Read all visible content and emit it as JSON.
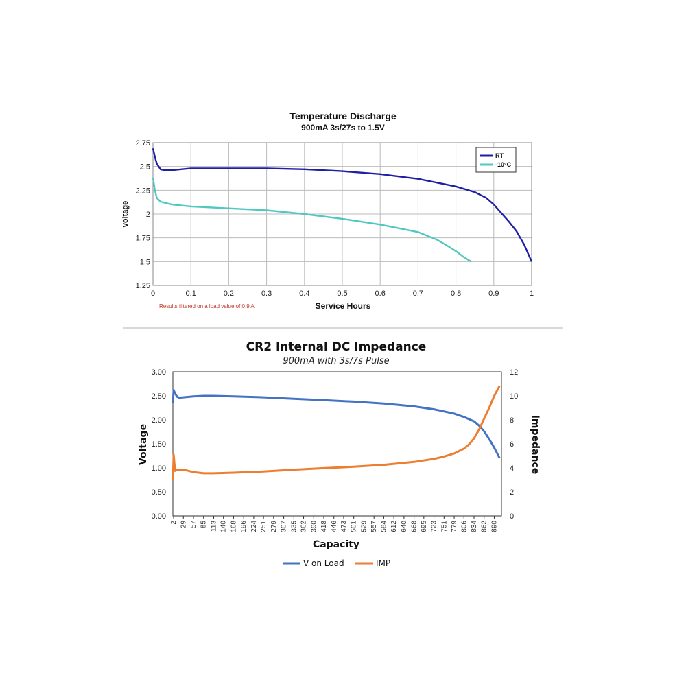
{
  "chart_data": [
    {
      "type": "line",
      "title": "Temperature Discharge",
      "subtitle": "900mA 3s/27s to 1.5V",
      "xlabel": "Service Hours",
      "ylabel": "voltage",
      "xlim": [
        0,
        1
      ],
      "ylim": [
        1.25,
        2.75
      ],
      "x_ticks": [
        "0",
        "0.1",
        "0.2",
        "0.3",
        "0.4",
        "0.5",
        "0.6",
        "0.7",
        "0.8",
        "0.9",
        "1"
      ],
      "y_ticks": [
        "2.75",
        "2.5",
        "2.25",
        "2",
        "1.75",
        "1.5",
        "1.25"
      ],
      "grid": true,
      "legend": "top-right",
      "annotation": "Results filtered on a load value of 0.9 A",
      "series": [
        {
          "name": "RT",
          "color": "#1f1fa6",
          "x": [
            0,
            0.005,
            0.01,
            0.02,
            0.03,
            0.05,
            0.1,
            0.2,
            0.3,
            0.4,
            0.5,
            0.6,
            0.7,
            0.8,
            0.85,
            0.88,
            0.9,
            0.92,
            0.94,
            0.96,
            0.98,
            1.0
          ],
          "y": [
            2.69,
            2.6,
            2.53,
            2.47,
            2.46,
            2.46,
            2.48,
            2.48,
            2.48,
            2.47,
            2.45,
            2.42,
            2.37,
            2.29,
            2.23,
            2.17,
            2.1,
            2.01,
            1.92,
            1.82,
            1.68,
            1.5
          ]
        },
        {
          "name": "-10°C",
          "color": "#4fc8c0",
          "x": [
            0,
            0.005,
            0.01,
            0.02,
            0.03,
            0.05,
            0.1,
            0.2,
            0.3,
            0.4,
            0.5,
            0.6,
            0.7,
            0.75,
            0.78,
            0.8,
            0.82,
            0.84
          ],
          "y": [
            2.38,
            2.25,
            2.17,
            2.13,
            2.12,
            2.1,
            2.08,
            2.06,
            2.04,
            2.0,
            1.95,
            1.89,
            1.81,
            1.73,
            1.66,
            1.61,
            1.55,
            1.5
          ]
        }
      ]
    },
    {
      "type": "line",
      "title": "CR2 Internal DC Impedance",
      "subtitle": "900mA with 3s/7s Pulse",
      "xlabel": "Capacity",
      "ylabel": "Voltage",
      "y2label": "Impedance",
      "categories": [
        "2",
        "29",
        "57",
        "85",
        "113",
        "140",
        "168",
        "196",
        "224",
        "251",
        "279",
        "307",
        "335",
        "362",
        "390",
        "418",
        "446",
        "473",
        "501",
        "529",
        "557",
        "584",
        "612",
        "640",
        "668",
        "695",
        "723",
        "751",
        "779",
        "806",
        "834",
        "862",
        "890"
      ],
      "xlim": [
        0,
        910
      ],
      "ylim": [
        0,
        3
      ],
      "y2lim": [
        0,
        12
      ],
      "y_ticks": [
        "0.00",
        "0.50",
        "1.00",
        "1.50",
        "2.00",
        "2.50",
        "3.00"
      ],
      "y2_ticks": [
        "0",
        "2",
        "4",
        "6",
        "8",
        "10",
        "12"
      ],
      "grid": false,
      "legend": "bottom",
      "series": [
        {
          "name": "V on Load",
          "color": "#4472c4",
          "axis": "left",
          "x": [
            0,
            2,
            6,
            12,
            18,
            29,
            57,
            85,
            113,
            168,
            251,
            335,
            418,
            501,
            584,
            668,
            723,
            779,
            806,
            834,
            848,
            862,
            876,
            890,
            905
          ],
          "y": [
            2.35,
            2.62,
            2.55,
            2.48,
            2.46,
            2.47,
            2.49,
            2.5,
            2.5,
            2.49,
            2.47,
            2.44,
            2.41,
            2.38,
            2.34,
            2.28,
            2.22,
            2.13,
            2.06,
            1.97,
            1.88,
            1.76,
            1.6,
            1.42,
            1.2
          ]
        },
        {
          "name": "IMP",
          "color": "#ed7d31",
          "axis": "right",
          "x": [
            0,
            2,
            6,
            12,
            29,
            57,
            85,
            113,
            168,
            251,
            335,
            418,
            501,
            584,
            668,
            723,
            751,
            779,
            806,
            820,
            834,
            848,
            862,
            876,
            890,
            905
          ],
          "y": [
            3.0,
            5.1,
            3.75,
            3.85,
            3.85,
            3.65,
            3.55,
            3.55,
            3.6,
            3.7,
            3.85,
            3.98,
            4.1,
            4.25,
            4.5,
            4.75,
            4.95,
            5.2,
            5.6,
            5.95,
            6.45,
            7.2,
            8.1,
            9.0,
            10.0,
            10.85
          ]
        }
      ]
    }
  ],
  "legend_rt_label": "RT",
  "legend_cold_label": "-10°C"
}
